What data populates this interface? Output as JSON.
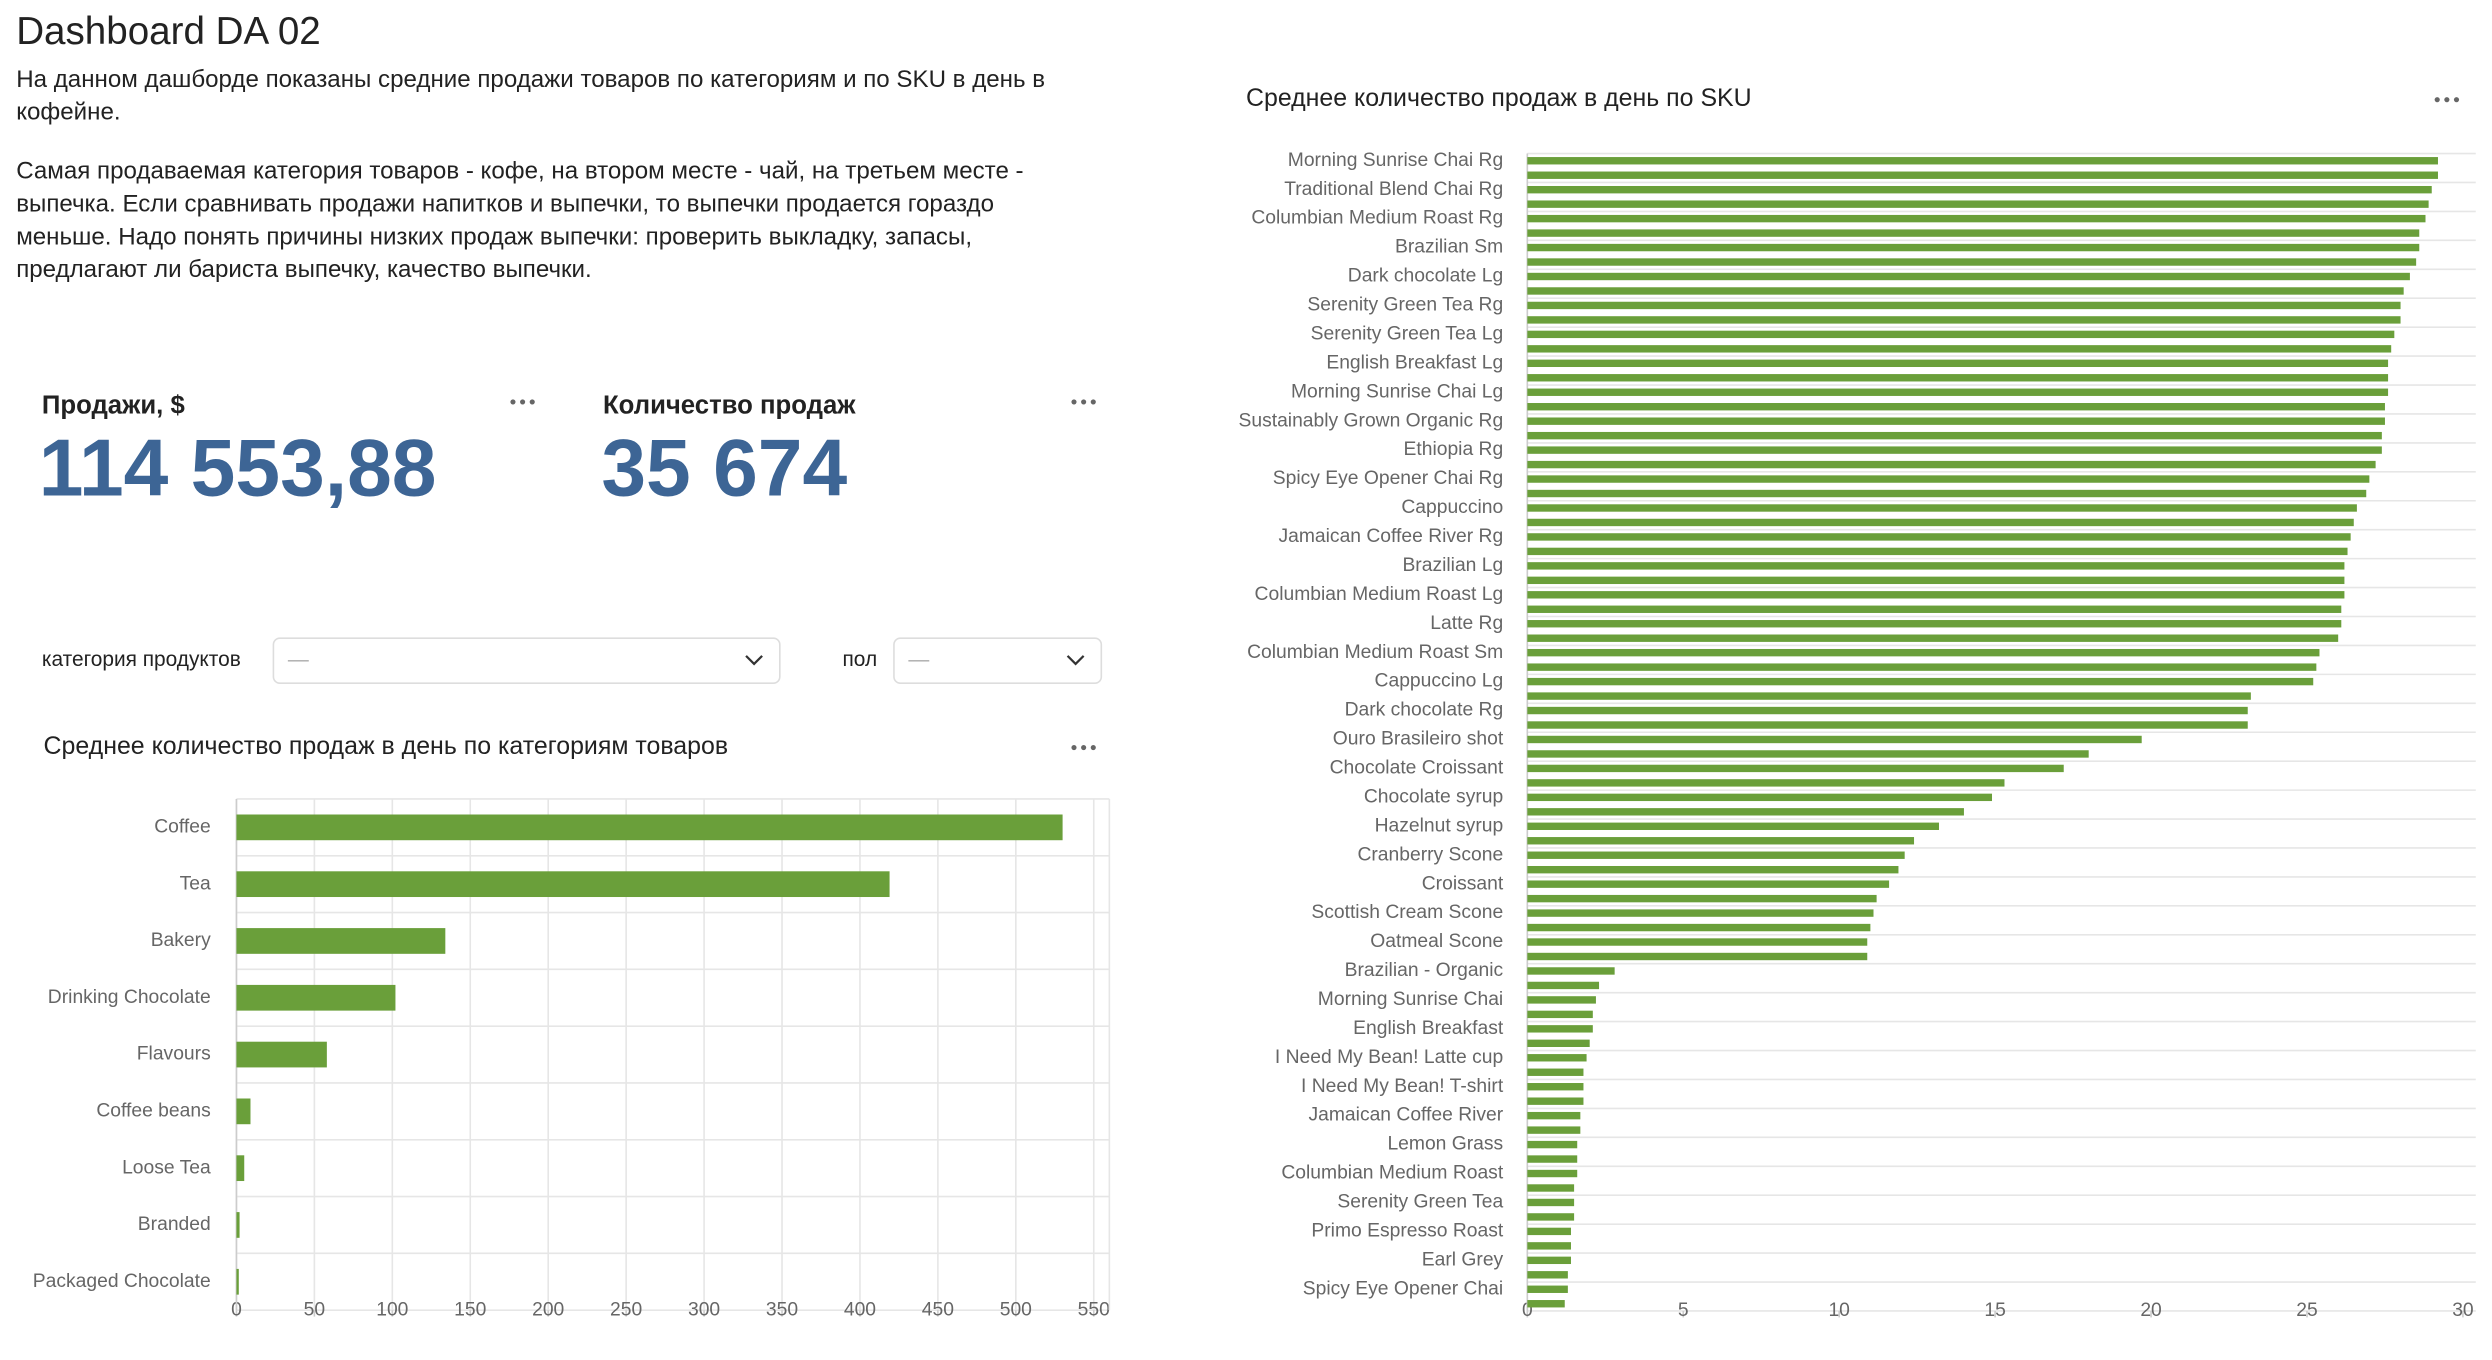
{
  "header": {
    "title": "Dashboard DA 02",
    "description": [
      [
        "На данном дашборде показаны средние продажи товаров по категориям и по SKU в день в",
        "кофейне."
      ],
      [
        "Самая продаваемая категория товаров - кофе, на втором месте - чай, на третьем месте -",
        "выпечка. Если сравнивать продажи напитков и выпечки, то выпечки продается гораздо",
        "меньше. Надо понять причины низких продаж выпечки: проверить выкладку, запасы,",
        "предлагают ли бариста выпечку, качество выпечки."
      ]
    ]
  },
  "kpis": [
    {
      "label": "Продажи, $",
      "value": "114 553,88"
    },
    {
      "label": "Количество продаж",
      "value": "35 674"
    }
  ],
  "filters": [
    {
      "label": "категория продуктов",
      "placeholder": "—"
    },
    {
      "label": "пол",
      "placeholder": "—"
    }
  ],
  "chart_data": [
    {
      "type": "hbar",
      "title": "Среднее количество продаж в день по категориям товаров",
      "color": "#6a9f3a",
      "grid": true,
      "categories": [
        "Coffee",
        "Tea",
        "Bakery",
        "Drinking Chocolate",
        "Flavours",
        "Coffee beans",
        "Loose Tea",
        "Branded",
        "Packaged Chocolate"
      ],
      "values": [
        530,
        419,
        134,
        102,
        58,
        9,
        5,
        2,
        1.5
      ],
      "xlim": [
        0,
        560
      ],
      "xticks": [
        0,
        50,
        100,
        150,
        200,
        250,
        300,
        350,
        400,
        450,
        500,
        550
      ]
    },
    {
      "type": "hbar",
      "title": "Среднее количество продаж в день по SKU",
      "color": "#6a9f3a",
      "grid": false,
      "categories": [
        "Morning Sunrise Chai Rg",
        null,
        "Traditional Blend Chai Rg",
        null,
        "Columbian Medium Roast Rg",
        null,
        "Brazilian Sm",
        null,
        "Dark chocolate Lg",
        null,
        "Serenity Green Tea Rg",
        null,
        "Serenity Green Tea Lg",
        null,
        "English Breakfast Lg",
        null,
        "Morning Sunrise Chai Lg",
        null,
        "Sustainably Grown Organic Rg",
        null,
        "Ethiopia Rg",
        null,
        "Spicy Eye Opener Chai Rg",
        null,
        "Cappuccino",
        null,
        "Jamaican Coffee River Rg",
        null,
        "Brazilian Lg",
        null,
        "Columbian Medium Roast Lg",
        null,
        "Latte Rg",
        null,
        "Columbian Medium Roast Sm",
        null,
        "Cappuccino Lg",
        null,
        "Dark chocolate Rg",
        null,
        "Ouro Brasileiro shot",
        null,
        "Chocolate Croissant",
        null,
        "Chocolate syrup",
        null,
        "Hazelnut syrup",
        null,
        "Cranberry Scone",
        null,
        "Croissant",
        null,
        "Scottish Cream Scone",
        null,
        "Oatmeal Scone",
        null,
        "Brazilian - Organic",
        null,
        "Morning Sunrise Chai",
        null,
        "English Breakfast",
        null,
        "I Need My Bean! Latte cup",
        null,
        "I Need My Bean! T-shirt",
        null,
        "Jamaican Coffee River",
        null,
        "Lemon Grass",
        null,
        "Columbian Medium Roast",
        null,
        "Serenity Green Tea",
        null,
        "Primo Espresso Roast",
        null,
        "Earl Grey",
        null,
        "Spicy Eye Opener Chai",
        null
      ],
      "values": [
        29.2,
        29.2,
        29.0,
        28.9,
        28.8,
        28.6,
        28.6,
        28.5,
        28.3,
        28.1,
        28.0,
        28.0,
        27.8,
        27.7,
        27.6,
        27.6,
        27.6,
        27.5,
        27.5,
        27.4,
        27.4,
        27.2,
        27.0,
        26.9,
        26.6,
        26.5,
        26.4,
        26.3,
        26.2,
        26.2,
        26.2,
        26.1,
        26.1,
        26.0,
        25.4,
        25.3,
        25.2,
        23.2,
        23.1,
        23.1,
        19.7,
        18.0,
        17.2,
        15.3,
        14.9,
        14.0,
        13.2,
        12.4,
        12.1,
        11.9,
        11.6,
        11.2,
        11.1,
        11.0,
        10.9,
        10.9,
        2.8,
        2.3,
        2.2,
        2.1,
        2.1,
        2.0,
        1.9,
        1.8,
        1.8,
        1.8,
        1.7,
        1.7,
        1.6,
        1.6,
        1.6,
        1.5,
        1.5,
        1.5,
        1.4,
        1.4,
        1.4,
        1.3,
        1.3,
        1.2
      ],
      "xlim": [
        0,
        30
      ],
      "xticks": [
        0,
        5,
        10,
        15,
        20,
        25,
        30
      ]
    }
  ]
}
